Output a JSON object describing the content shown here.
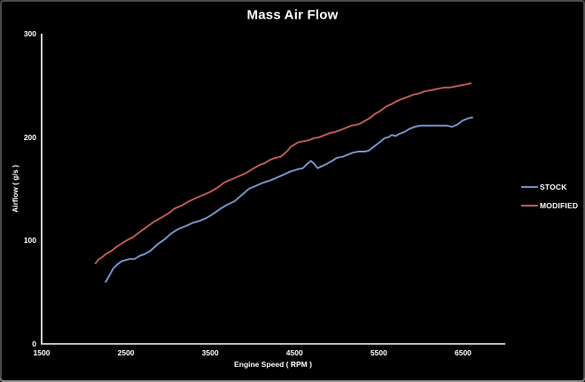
{
  "window": {
    "bg": "#000000",
    "border": "#4a4a4a"
  },
  "chart_data": {
    "type": "line",
    "title": "Mass Air Flow",
    "xlabel": "Engine Speed ( RPM )",
    "ylabel": "Airflow ( g/s )",
    "xlim": [
      1500,
      7000
    ],
    "ylim": [
      0,
      300
    ],
    "x_ticks": [
      1500,
      2500,
      3500,
      4500,
      5500,
      6500
    ],
    "y_ticks": [
      0,
      100,
      200,
      300
    ],
    "grid": false,
    "background": "#000000",
    "axis_color": "#ffffff",
    "text_color": "#ffffff",
    "legend_position": "right",
    "series": [
      {
        "name": "STOCK",
        "color": "#7592c6",
        "points": [
          [
            2260,
            60
          ],
          [
            2310,
            67
          ],
          [
            2350,
            73
          ],
          [
            2400,
            77
          ],
          [
            2450,
            80
          ],
          [
            2540,
            82
          ],
          [
            2600,
            82
          ],
          [
            2660,
            85
          ],
          [
            2725,
            87
          ],
          [
            2790,
            90
          ],
          [
            2870,
            96
          ],
          [
            2955,
            101
          ],
          [
            3040,
            107
          ],
          [
            3120,
            111
          ],
          [
            3210,
            114
          ],
          [
            3290,
            117
          ],
          [
            3375,
            119
          ],
          [
            3460,
            122
          ],
          [
            3540,
            126
          ],
          [
            3625,
            131
          ],
          [
            3710,
            135
          ],
          [
            3790,
            138
          ],
          [
            3875,
            144
          ],
          [
            3960,
            150
          ],
          [
            4045,
            153
          ],
          [
            4130,
            156
          ],
          [
            4210,
            158
          ],
          [
            4295,
            161
          ],
          [
            4380,
            164
          ],
          [
            4460,
            167
          ],
          [
            4545,
            169
          ],
          [
            4600,
            170
          ],
          [
            4650,
            174
          ],
          [
            4695,
            177
          ],
          [
            4735,
            174
          ],
          [
            4775,
            170
          ],
          [
            4830,
            172
          ],
          [
            4880,
            174
          ],
          [
            4945,
            177
          ],
          [
            5005,
            180
          ],
          [
            5070,
            181
          ],
          [
            5130,
            183
          ],
          [
            5195,
            185
          ],
          [
            5260,
            186
          ],
          [
            5300,
            186
          ],
          [
            5340,
            186
          ],
          [
            5385,
            187
          ],
          [
            5445,
            191
          ],
          [
            5510,
            195
          ],
          [
            5570,
            199
          ],
          [
            5615,
            200
          ],
          [
            5655,
            202
          ],
          [
            5700,
            201
          ],
          [
            5740,
            203
          ],
          [
            5805,
            205
          ],
          [
            5865,
            208
          ],
          [
            5930,
            210
          ],
          [
            5990,
            211
          ],
          [
            6055,
            211
          ],
          [
            6140,
            211
          ],
          [
            6220,
            211
          ],
          [
            6305,
            211
          ],
          [
            6370,
            210
          ],
          [
            6430,
            212
          ],
          [
            6495,
            216
          ],
          [
            6555,
            218
          ],
          [
            6610,
            219
          ]
        ]
      },
      {
        "name": "MODIFIED",
        "color": "#bb5a55",
        "points": [
          [
            2140,
            78
          ],
          [
            2180,
            82
          ],
          [
            2220,
            84
          ],
          [
            2265,
            87
          ],
          [
            2330,
            90
          ],
          [
            2390,
            94
          ],
          [
            2450,
            97
          ],
          [
            2505,
            100
          ],
          [
            2580,
            103
          ],
          [
            2660,
            108
          ],
          [
            2745,
            113
          ],
          [
            2830,
            118
          ],
          [
            2915,
            122
          ],
          [
            3000,
            126
          ],
          [
            3080,
            131
          ],
          [
            3165,
            134
          ],
          [
            3250,
            138
          ],
          [
            3330,
            141
          ],
          [
            3415,
            144
          ],
          [
            3500,
            147
          ],
          [
            3585,
            151
          ],
          [
            3665,
            156
          ],
          [
            3750,
            159
          ],
          [
            3835,
            162
          ],
          [
            3920,
            165
          ],
          [
            4000,
            169
          ],
          [
            4085,
            173
          ],
          [
            4150,
            175
          ],
          [
            4210,
            178
          ],
          [
            4275,
            180
          ],
          [
            4335,
            181
          ],
          [
            4380,
            184
          ],
          [
            4420,
            187
          ],
          [
            4460,
            191
          ],
          [
            4505,
            193
          ],
          [
            4545,
            195
          ],
          [
            4610,
            196
          ],
          [
            4670,
            197
          ],
          [
            4735,
            199
          ],
          [
            4800,
            200
          ],
          [
            4860,
            202
          ],
          [
            4925,
            204
          ],
          [
            4985,
            205
          ],
          [
            5050,
            207
          ],
          [
            5110,
            209
          ],
          [
            5175,
            211
          ],
          [
            5240,
            212
          ],
          [
            5280,
            213
          ],
          [
            5320,
            215
          ],
          [
            5365,
            217
          ],
          [
            5405,
            219
          ],
          [
            5445,
            222
          ],
          [
            5490,
            224
          ],
          [
            5530,
            226
          ],
          [
            5595,
            230
          ],
          [
            5655,
            232
          ],
          [
            5720,
            235
          ],
          [
            5780,
            237
          ],
          [
            5845,
            239
          ],
          [
            5910,
            241
          ],
          [
            5970,
            242
          ],
          [
            6035,
            244
          ],
          [
            6095,
            245
          ],
          [
            6160,
            246
          ],
          [
            6220,
            247
          ],
          [
            6285,
            248
          ],
          [
            6345,
            248
          ],
          [
            6410,
            249
          ],
          [
            6475,
            250
          ],
          [
            6535,
            251
          ],
          [
            6590,
            252
          ]
        ]
      }
    ]
  }
}
